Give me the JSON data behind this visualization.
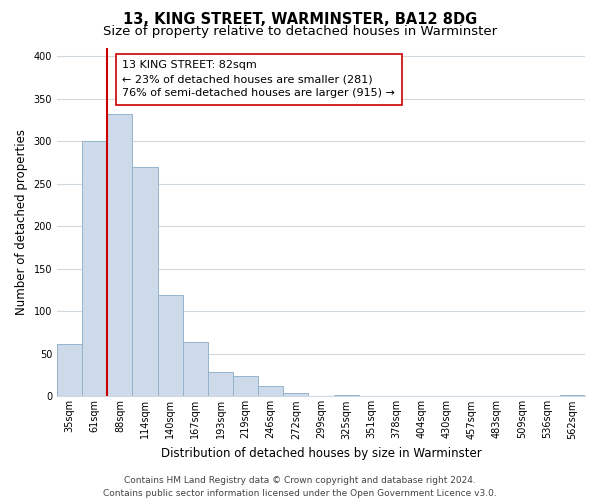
{
  "title": "13, KING STREET, WARMINSTER, BA12 8DG",
  "subtitle": "Size of property relative to detached houses in Warminster",
  "xlabel": "Distribution of detached houses by size in Warminster",
  "ylabel": "Number of detached properties",
  "bar_labels": [
    "35sqm",
    "61sqm",
    "88sqm",
    "114sqm",
    "140sqm",
    "167sqm",
    "193sqm",
    "219sqm",
    "246sqm",
    "272sqm",
    "299sqm",
    "325sqm",
    "351sqm",
    "378sqm",
    "404sqm",
    "430sqm",
    "457sqm",
    "483sqm",
    "509sqm",
    "536sqm",
    "562sqm"
  ],
  "bar_values": [
    62,
    300,
    332,
    270,
    119,
    64,
    29,
    24,
    12,
    4,
    0,
    2,
    0,
    0,
    0,
    0,
    0,
    0,
    0,
    0,
    2
  ],
  "bar_color": "#ccdaea",
  "bar_edge_color": "#94b4cc",
  "vline_color": "#cc0000",
  "vline_x": 1.5,
  "ylim": [
    0,
    410
  ],
  "yticks": [
    0,
    50,
    100,
    150,
    200,
    250,
    300,
    350,
    400
  ],
  "annotation_text": "13 KING STREET: 82sqm\n← 23% of detached houses are smaller (281)\n76% of semi-detached houses are larger (915) →",
  "annotation_box_color": "#ffffff",
  "annotation_box_edge": "#cc0000",
  "footer_text": "Contains HM Land Registry data © Crown copyright and database right 2024.\nContains public sector information licensed under the Open Government Licence v3.0.",
  "background_color": "#ffffff",
  "grid_color": "#d0d8e0",
  "title_fontsize": 10.5,
  "subtitle_fontsize": 9.5,
  "xlabel_fontsize": 8.5,
  "ylabel_fontsize": 8.5,
  "tick_fontsize": 7,
  "annotation_fontsize": 8,
  "footer_fontsize": 6.5
}
